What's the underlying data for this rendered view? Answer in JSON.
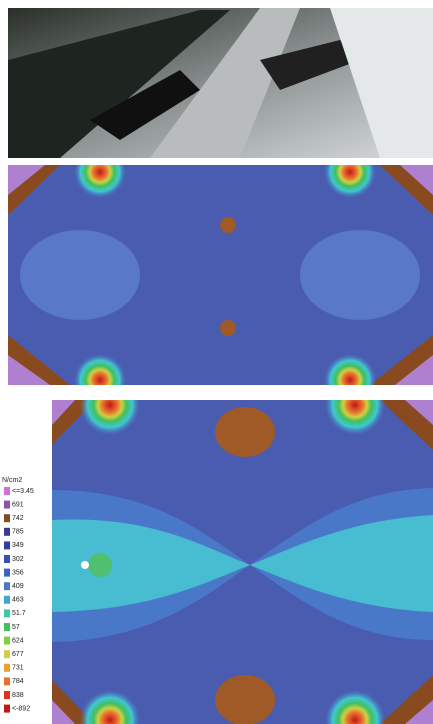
{
  "legend": {
    "unit": "N/cm2",
    "entries": [
      {
        "label": "<=3.45",
        "color": "#d070d8"
      },
      {
        "label": "691",
        "color": "#9050b0"
      },
      {
        "label": "742",
        "color": "#8a4a20"
      },
      {
        "label": "785",
        "color": "#3a3a90"
      },
      {
        "label": "349",
        "color": "#3040a0"
      },
      {
        "label": "302",
        "color": "#3850b0"
      },
      {
        "label": "356",
        "color": "#4060c0"
      },
      {
        "label": "409",
        "color": "#4a78c8"
      },
      {
        "label": "463",
        "color": "#40a8d0"
      },
      {
        "label": "51.7",
        "color": "#40c8a8"
      },
      {
        "label": "57",
        "color": "#40c060"
      },
      {
        "label": "624",
        "color": "#80d040"
      },
      {
        "label": "677",
        "color": "#d0d040"
      },
      {
        "label": "731",
        "color": "#e8a030"
      },
      {
        "label": "784",
        "color": "#e87030"
      },
      {
        "label": "838",
        "color": "#e03020"
      },
      {
        "label": "<-892",
        "color": "#c01818"
      }
    ]
  }
}
